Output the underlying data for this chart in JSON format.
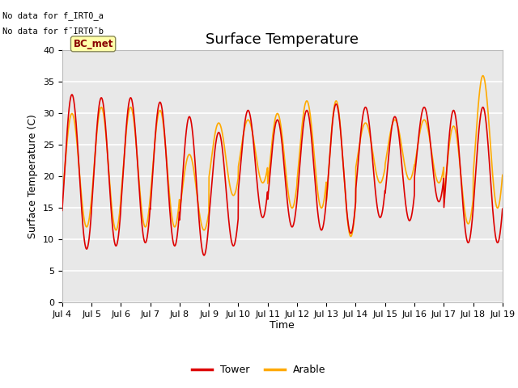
{
  "title": "Surface Temperature",
  "ylabel": "Surface Temperature (C)",
  "xlabel": "Time",
  "ylim": [
    0,
    40
  ],
  "yticks": [
    0,
    5,
    10,
    15,
    20,
    25,
    30,
    35,
    40
  ],
  "xtick_labels": [
    "Jul 4",
    "Jul 5",
    "Jul 6",
    "Jul 7",
    "Jul 8",
    "Jul 9",
    "Jul 10",
    "Jul 11",
    "Jul 12",
    "Jul 13",
    "Jul 14",
    "Jul 15",
    "Jul 16",
    "Jul 17",
    "Jul 18",
    "Jul 19"
  ],
  "annotation_text1": "No data for f_IRT0_a",
  "annotation_text2": "No data for f¯IRT0¯b",
  "box_label": "BC_met",
  "tower_color": "#dd0000",
  "arable_color": "#ffaa00",
  "legend_entries": [
    "Tower",
    "Arable"
  ],
  "background_color": "#e8e8e8",
  "grid_color": "#ffffff",
  "title_fontsize": 13,
  "label_fontsize": 9,
  "tick_fontsize": 8,
  "line_width": 1.2,
  "n_days": 15
}
